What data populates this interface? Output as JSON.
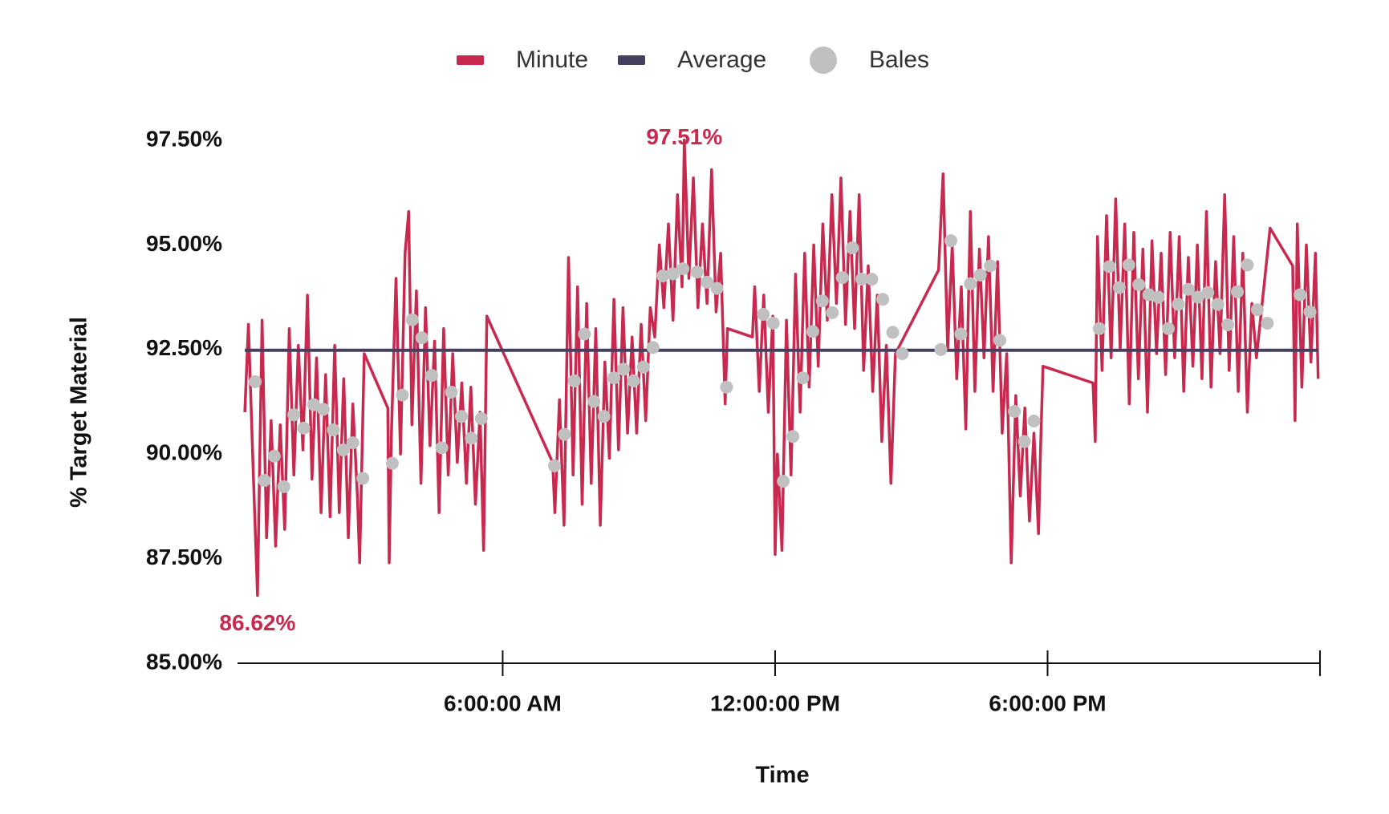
{
  "chart_data": {
    "type": "line",
    "x_label": "Time",
    "y_label": "% Target Material",
    "xlim": [
      0.16,
      24
    ],
    "xticks": [
      {
        "value": 6,
        "label": "6:00:00 AM"
      },
      {
        "value": 12,
        "label": "12:00:00 PM"
      },
      {
        "value": 18,
        "label": "6:00:00 PM"
      },
      {
        "value": 24,
        "label": null
      }
    ],
    "ylim": [
      85,
      97.5
    ],
    "yticks": [
      {
        "value": 85,
        "label": "85.00%"
      },
      {
        "value": 87.5,
        "label": "87.50%"
      },
      {
        "value": 90,
        "label": "90.00%"
      },
      {
        "value": 92.5,
        "label": "92.50%"
      },
      {
        "value": 95,
        "label": "95.00%"
      },
      {
        "value": 97.5,
        "label": "97.50%"
      }
    ],
    "legend": "top",
    "series": [
      {
        "name": "Minute",
        "color": "#c8294f",
        "type": "line",
        "x": [
          0.32,
          0.4,
          0.5,
          0.6,
          0.7,
          0.8,
          0.9,
          1.0,
          1.1,
          1.2,
          1.3,
          1.4,
          1.5,
          1.6,
          1.7,
          1.8,
          1.9,
          2.0,
          2.1,
          2.2,
          2.3,
          2.4,
          2.5,
          2.6,
          2.7,
          2.8,
          2.85,
          2.95,
          3.47,
          3.5,
          3.55,
          3.65,
          3.75,
          3.85,
          3.93,
          4.0,
          4.1,
          4.2,
          4.3,
          4.4,
          4.5,
          4.6,
          4.7,
          4.8,
          4.9,
          5.0,
          5.1,
          5.2,
          5.3,
          5.4,
          5.5,
          5.58,
          5.65,
          7.1,
          7.15,
          7.25,
          7.35,
          7.45,
          7.55,
          7.65,
          7.75,
          7.85,
          7.95,
          8.05,
          8.15,
          8.25,
          8.35,
          8.45,
          8.55,
          8.65,
          8.75,
          8.85,
          8.95,
          9.05,
          9.15,
          9.25,
          9.35,
          9.45,
          9.55,
          9.65,
          9.75,
          9.85,
          9.95,
          10.0,
          10.1,
          10.2,
          10.3,
          10.4,
          10.5,
          10.6,
          10.7,
          10.8,
          10.9,
          10.95,
          11.5,
          11.55,
          11.65,
          11.75,
          11.85,
          11.95,
          12.0,
          12.05,
          12.15,
          12.25,
          12.35,
          12.45,
          12.55,
          12.65,
          12.75,
          12.85,
          12.95,
          13.05,
          13.15,
          13.25,
          13.35,
          13.45,
          13.55,
          13.65,
          13.75,
          13.85,
          13.95,
          14.05,
          14.15,
          14.25,
          14.35,
          14.45,
          14.55,
          14.65,
          15.6,
          15.7,
          15.8,
          15.9,
          16.0,
          16.1,
          16.2,
          16.3,
          16.4,
          16.5,
          16.6,
          16.7,
          16.8,
          16.9,
          17.0,
          17.1,
          17.2,
          17.3,
          17.4,
          17.5,
          17.6,
          17.7,
          17.8,
          17.85,
          17.9,
          19.0,
          19.05,
          19.1,
          19.2,
          19.3,
          19.4,
          19.5,
          19.6,
          19.7,
          19.8,
          19.9,
          20.0,
          20.1,
          20.2,
          20.3,
          20.4,
          20.5,
          20.6,
          20.7,
          20.8,
          20.9,
          21.0,
          21.1,
          21.2,
          21.3,
          21.4,
          21.5,
          21.6,
          21.7,
          21.8,
          21.9,
          22.0,
          22.1,
          22.2,
          22.3,
          22.4,
          22.5,
          22.6,
          22.9,
          23.4,
          23.45,
          23.5,
          23.6,
          23.7,
          23.8,
          23.9,
          23.96
        ],
        "values": [
          91.0,
          93.1,
          89.8,
          86.62,
          93.2,
          88.0,
          90.8,
          87.8,
          90.7,
          88.2,
          93.0,
          89.5,
          92.6,
          90.1,
          93.8,
          89.4,
          92.3,
          88.6,
          91.9,
          88.5,
          92.6,
          88.6,
          91.8,
          88.0,
          91.2,
          89.0,
          87.4,
          92.4,
          91.1,
          87.4,
          90.5,
          94.2,
          90.0,
          94.8,
          95.8,
          90.7,
          93.9,
          89.3,
          93.5,
          90.2,
          92.7,
          88.6,
          93.0,
          89.5,
          92.4,
          89.8,
          91.7,
          89.3,
          91.6,
          88.8,
          91.0,
          87.7,
          93.3,
          89.8,
          88.6,
          91.3,
          88.3,
          94.7,
          89.5,
          94.0,
          88.8,
          93.6,
          89.3,
          93.0,
          88.3,
          92.2,
          89.9,
          93.7,
          90.1,
          93.5,
          90.5,
          92.8,
          90.5,
          93.1,
          90.8,
          93.5,
          92.8,
          95.0,
          93.5,
          95.5,
          93.2,
          96.2,
          94.0,
          97.51,
          94.2,
          96.6,
          93.5,
          95.5,
          93.6,
          96.8,
          93.4,
          94.8,
          91.2,
          93.0,
          92.8,
          94.0,
          91.5,
          93.8,
          91.0,
          93.3,
          87.6,
          90.0,
          87.7,
          93.2,
          89.5,
          94.3,
          91.0,
          94.8,
          91.6,
          95.0,
          92.1,
          95.5,
          93.2,
          96.2,
          93.6,
          96.6,
          93.1,
          95.8,
          93.0,
          96.2,
          92.0,
          94.5,
          91.5,
          93.8,
          90.3,
          92.6,
          89.3,
          92.4,
          94.4,
          96.7,
          92.5,
          95.0,
          91.8,
          94.0,
          90.6,
          95.8,
          91.5,
          94.9,
          92.3,
          95.2,
          91.5,
          94.6,
          90.5,
          92.4,
          87.4,
          91.4,
          89.0,
          91.1,
          88.4,
          90.5,
          88.1,
          90.3,
          92.1,
          91.7,
          90.3,
          95.2,
          92.0,
          95.7,
          92.3,
          96.1,
          92.5,
          95.5,
          91.2,
          95.3,
          91.8,
          94.9,
          91.0,
          95.1,
          92.4,
          94.8,
          91.9,
          95.3,
          92.3,
          95.2,
          91.5,
          94.7,
          92.1,
          95.0,
          91.8,
          95.8,
          91.6,
          94.6,
          92.4,
          96.2,
          92.0,
          95.2,
          91.5,
          94.8,
          91.0,
          93.6,
          92.3,
          95.4,
          94.5,
          90.8,
          95.5,
          91.6,
          95.0,
          92.2,
          94.8,
          91.8
        ]
      },
      {
        "name": "Average",
        "color": "#45405f",
        "type": "line",
        "x": [
          0.32,
          23.96
        ],
        "values": [
          92.48,
          92.48
        ]
      },
      {
        "name": "Bales",
        "color": "#c0c0c0",
        "type": "scatter",
        "x": [
          0.55,
          0.75,
          0.97,
          1.18,
          1.4,
          1.62,
          1.84,
          2.05,
          2.27,
          2.49,
          2.7,
          2.92,
          3.57,
          3.79,
          4.01,
          4.22,
          4.44,
          4.66,
          4.87,
          5.09,
          5.31,
          5.53,
          7.14,
          7.36,
          7.58,
          7.8,
          8.01,
          8.23,
          8.45,
          8.66,
          8.88,
          9.1,
          9.31,
          9.53,
          9.75,
          9.97,
          10.28,
          10.5,
          10.72,
          10.93,
          11.74,
          11.96,
          12.18,
          12.39,
          12.61,
          12.83,
          13.04,
          13.26,
          13.48,
          13.7,
          13.91,
          14.13,
          14.37,
          14.59,
          14.8,
          15.65,
          15.87,
          16.09,
          16.3,
          16.52,
          16.74,
          16.95,
          17.27,
          17.49,
          17.7,
          19.14,
          19.36,
          19.58,
          19.79,
          20.01,
          20.23,
          20.44,
          20.66,
          20.88,
          21.1,
          21.31,
          21.53,
          21.75,
          21.97,
          22.18,
          22.4,
          22.62,
          22.84,
          23.56,
          23.78
        ],
        "values": [
          91.73,
          89.37,
          89.95,
          89.22,
          90.94,
          90.62,
          91.18,
          91.07,
          90.58,
          90.1,
          90.27,
          89.42,
          89.78,
          91.41,
          93.21,
          92.78,
          91.88,
          90.15,
          91.48,
          90.9,
          90.38,
          90.85,
          89.72,
          90.47,
          91.75,
          92.87,
          91.26,
          90.9,
          91.82,
          92.03,
          91.75,
          92.08,
          92.55,
          94.26,
          94.31,
          94.43,
          94.35,
          94.11,
          93.96,
          91.6,
          93.34,
          93.13,
          89.35,
          90.42,
          91.82,
          92.93,
          93.66,
          93.38,
          94.22,
          94.93,
          94.18,
          94.18,
          93.7,
          92.91,
          92.4,
          92.5,
          95.1,
          92.87,
          94.07,
          94.28,
          94.5,
          92.72,
          91.02,
          90.3,
          90.79,
          93.0,
          94.48,
          93.98,
          94.52,
          94.05,
          93.81,
          93.75,
          93.0,
          93.58,
          93.94,
          93.75,
          93.86,
          93.58,
          93.09,
          93.88,
          94.52,
          93.45,
          93.13,
          93.81,
          93.4
        ]
      }
    ],
    "annotations": [
      {
        "text": "97.51%",
        "x": 10.0,
        "value": 97.51,
        "position": "above"
      },
      {
        "text": "86.62%",
        "x": 0.6,
        "value": 86.62,
        "position": "below"
      }
    ]
  }
}
